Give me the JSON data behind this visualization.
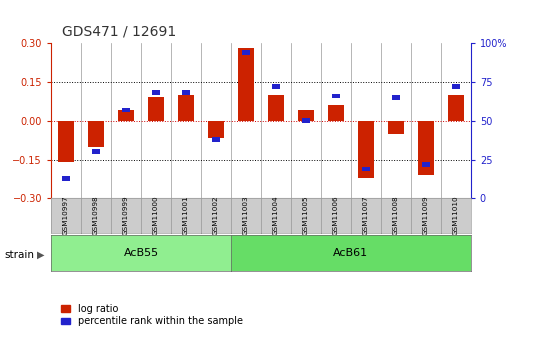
{
  "title": "GDS471 / 12691",
  "samples": [
    "GSM10997",
    "GSM10998",
    "GSM10999",
    "GSM11000",
    "GSM11001",
    "GSM11002",
    "GSM11003",
    "GSM11004",
    "GSM11005",
    "GSM11006",
    "GSM11007",
    "GSM11008",
    "GSM11009",
    "GSM11010"
  ],
  "log_ratio": [
    -0.16,
    -0.1,
    0.04,
    0.09,
    0.1,
    -0.065,
    0.28,
    0.1,
    0.04,
    0.06,
    -0.22,
    -0.05,
    -0.21,
    0.1
  ],
  "percentile_rank": [
    13,
    30,
    57,
    68,
    68,
    38,
    94,
    72,
    50,
    66,
    19,
    65,
    22,
    72
  ],
  "groups": [
    {
      "label": "AcB55",
      "start": 0,
      "end": 6,
      "color": "#90ee90"
    },
    {
      "label": "AcB61",
      "start": 6,
      "end": 14,
      "color": "#66dd66"
    }
  ],
  "ylim": [
    -0.3,
    0.3
  ],
  "yticks_left": [
    -0.3,
    -0.15,
    0.0,
    0.15,
    0.3
  ],
  "yticks_right": [
    0,
    25,
    50,
    75,
    100
  ],
  "bar_color_red": "#cc2200",
  "bar_color_blue": "#2222cc",
  "dotted_line_color": "#000000",
  "zero_line_color": "#cc0000",
  "bg_color": "#ffffff",
  "sample_box_color": "#cccccc",
  "spine_color": "#999999",
  "strain_label": "strain",
  "legend_log_ratio": "log ratio",
  "legend_percentile": "percentile rank within the sample"
}
